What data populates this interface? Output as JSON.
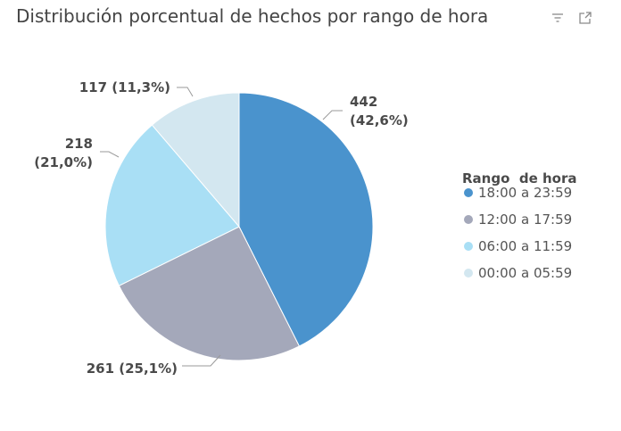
{
  "chart_data": {
    "type": "pie",
    "title": "Distribución porcentual de hechos por rango de hora",
    "legend_title": "Rango  de hora",
    "legend_placement": "right",
    "slices": [
      {
        "name": "18:00 a 23:59",
        "value": 442,
        "percent": "42,6%",
        "color": "#4a93cd"
      },
      {
        "name": "12:00 a 17:59",
        "value": 261,
        "percent": "25,1%",
        "color": "#a4a8ba"
      },
      {
        "name": "06:00 a 11:59",
        "value": 218,
        "percent": "21,0%",
        "color": "#a9dff5"
      },
      {
        "name": "00:00 a 05:59",
        "value": 117,
        "percent": "11,3%",
        "color": "#d3e7f0"
      }
    ]
  },
  "toolbar": {
    "filter_icon": "filter-icon",
    "expand_icon": "expand-icon"
  }
}
